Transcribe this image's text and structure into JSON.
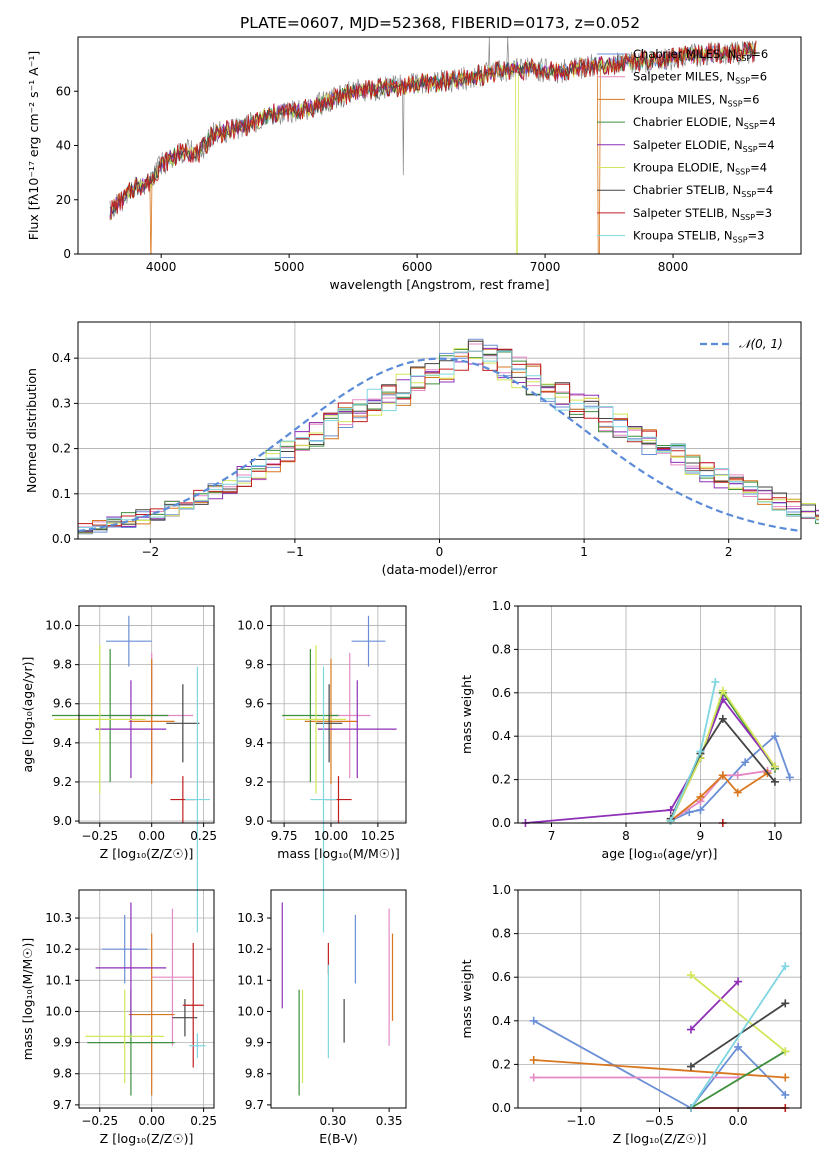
{
  "figure_title": "PLATE=0607, MJD=52368, FIBERID=0173, z=0.052",
  "colors": {
    "Chabrier MILES": "#6b8fd6",
    "Salpeter MILES": "#e589c4",
    "Kroupa MILES": "#d9771f",
    "Chabrier ELODIE": "#3e8f3e",
    "Salpeter ELODIE": "#8e2fb8",
    "Kroupa ELODIE": "#d4e65a",
    "Chabrier STELIB": "#444444",
    "Salpeter STELIB": "#c21f1f",
    "Kroupa STELIB": "#7fd6e0",
    "grid": "#b0b0b0",
    "normal_curve": "#5b8bd9"
  },
  "chart_data": [
    {
      "id": "spectrum",
      "type": "line",
      "xlabel": "wavelength [Angstrom, rest frame]",
      "ylabel": "Flux [fλ10⁻¹⁷ erg cm⁻² s⁻¹ A⁻¹]",
      "xlim": [
        3350,
        9000
      ],
      "ylim": [
        0,
        80
      ],
      "xticks": [
        4000,
        5000,
        6000,
        7000,
        8000
      ],
      "yticks": [
        0,
        20,
        40,
        60
      ],
      "grid": false,
      "legend_position": "top-right",
      "legend": [
        {
          "model": "Chabrier MILES",
          "label": "Chabrier MILES, N",
          "sub": "SSP",
          "tail": "=6"
        },
        {
          "model": "Salpeter MILES",
          "label": "Salpeter MILES, N",
          "sub": "SSP",
          "tail": "=6"
        },
        {
          "model": "Kroupa MILES",
          "label": "Kroupa MILES, N",
          "sub": "SSP",
          "tail": "=6"
        },
        {
          "model": "Chabrier ELODIE",
          "label": "Chabrier ELODIE, N",
          "sub": "SSP",
          "tail": "=4"
        },
        {
          "model": "Salpeter ELODIE",
          "label": "Salpeter ELODIE, N",
          "sub": "SSP",
          "tail": "=4"
        },
        {
          "model": "Kroupa ELODIE",
          "label": "Kroupa ELODIE, N",
          "sub": "SSP",
          "tail": "=4"
        },
        {
          "model": "Chabrier STELIB",
          "label": "Chabrier STELIB, N",
          "sub": "SSP",
          "tail": "=4"
        },
        {
          "model": "Salpeter STELIB",
          "label": "Salpeter STELIB, N",
          "sub": "SSP",
          "tail": "=3"
        },
        {
          "model": "Kroupa STELIB",
          "label": "Kroupa STELIB, N",
          "sub": "SSP",
          "tail": "=3"
        }
      ],
      "continuum": {
        "x": [
          3600,
          3700,
          3800,
          3900,
          4000,
          4100,
          4200,
          4300,
          4400,
          4500,
          4700,
          4900,
          5100,
          5300,
          5500,
          5700,
          5900,
          6100,
          6300,
          6500,
          6700,
          6900,
          7100,
          7300,
          7500,
          7700,
          7900,
          8100,
          8300,
          8500,
          8650
        ],
        "y": [
          16,
          20,
          25,
          26,
          33,
          36,
          38,
          37,
          44,
          45,
          48,
          52,
          53,
          56,
          60,
          61,
          62,
          63,
          64,
          66,
          68,
          68,
          67,
          69,
          70,
          71,
          71,
          73,
          74,
          74,
          75
        ]
      },
      "data_spikes": [
        {
          "x": 5890,
          "y": 29
        },
        {
          "x": 6563,
          "y": 80
        },
        {
          "x": 6710,
          "y": 80
        }
      ],
      "model_drops": [
        {
          "x": 3920,
          "model": "Kroupa MILES"
        },
        {
          "x": 6780,
          "model": "Kroupa ELODIE"
        },
        {
          "x": 7420,
          "model": "Kroupa MILES"
        }
      ]
    },
    {
      "id": "residuals",
      "type": "histogram",
      "xlabel": "(data-model)/error",
      "ylabel": "Normed distribution",
      "xlim": [
        -2.5,
        2.5
      ],
      "ylim": [
        0,
        0.48
      ],
      "xticks": [
        -2,
        -1,
        0,
        1,
        2
      ],
      "yticks": [
        0.0,
        0.1,
        0.2,
        0.3,
        0.4
      ],
      "grid": true,
      "legend_position": "top-right",
      "legend": [
        {
          "label": "𝒩(0, 1)",
          "style": "dashed"
        }
      ],
      "bin_width": 0.1,
      "bin_start": -2.5,
      "reference_density": [
        0.02,
        0.028,
        0.034,
        0.042,
        0.05,
        0.058,
        0.068,
        0.08,
        0.093,
        0.106,
        0.122,
        0.138,
        0.152,
        0.172,
        0.196,
        0.216,
        0.232,
        0.25,
        0.272,
        0.29,
        0.3,
        0.318,
        0.33,
        0.345,
        0.36,
        0.38,
        0.4,
        0.412,
        0.402,
        0.384,
        0.372,
        0.352,
        0.338,
        0.318,
        0.3,
        0.286,
        0.268,
        0.248,
        0.23,
        0.214,
        0.198,
        0.184,
        0.166,
        0.15,
        0.136,
        0.124,
        0.11,
        0.097,
        0.084,
        0.07,
        0.061,
        0.052,
        0.046,
        0.04,
        0.034,
        0.03,
        0.026,
        0.024,
        0.022,
        0.02
      ]
    },
    {
      "id": "age-vs-Z",
      "type": "errorbar",
      "xlabel": "Z [log₁₀(Z/Z☉)]",
      "ylabel": "age  [log₁₀(age/yr)]",
      "xlim": [
        -0.35,
        0.3
      ],
      "ylim": [
        8.99,
        10.1
      ],
      "xticks": [
        -0.25,
        0.0,
        0.25
      ],
      "yticks": [
        9.0,
        9.2,
        9.4,
        9.6,
        9.8,
        10.0
      ],
      "grid": true,
      "points": [
        {
          "model": "Chabrier MILES",
          "x": -0.11,
          "y": 9.92,
          "xerr": 0.11,
          "yerr": 0.13
        },
        {
          "model": "Salpeter MILES",
          "x": 0.0,
          "y": 9.54,
          "xerr": 0.2,
          "yerr": 0.32
        },
        {
          "model": "Kroupa MILES",
          "x": 0.0,
          "y": 9.51,
          "xerr": 0.11,
          "yerr": 0.32
        },
        {
          "model": "Chabrier ELODIE",
          "x": -0.2,
          "y": 9.54,
          "xerr": 0.28,
          "yerr": 0.34
        },
        {
          "model": "Salpeter ELODIE",
          "x": -0.1,
          "y": 9.47,
          "xerr": 0.17,
          "yerr": 0.25
        },
        {
          "model": "Kroupa ELODIE",
          "x": -0.25,
          "y": 9.52,
          "xerr": 0.22,
          "yerr": 0.38
        },
        {
          "model": "Chabrier STELIB",
          "x": 0.15,
          "y": 9.5,
          "xerr": 0.08,
          "yerr": 0.2
        },
        {
          "model": "Salpeter STELIB",
          "x": 0.15,
          "y": 9.11,
          "xerr": 0.06,
          "yerr": 0.12
        },
        {
          "model": "Kroupa STELIB",
          "x": 0.22,
          "y": 9.11,
          "xerr": 0.06,
          "yerr": 0.68
        }
      ]
    },
    {
      "id": "age-vs-mass",
      "type": "errorbar",
      "xlabel": "mass [log₁₀(M/M☉)]",
      "ylabel": "",
      "xlim": [
        9.68,
        10.4
      ],
      "ylim": [
        8.99,
        10.1
      ],
      "xticks": [
        9.75,
        10.0,
        10.25
      ],
      "yticks": [
        9.0,
        9.2,
        9.4,
        9.6,
        9.8,
        10.0
      ],
      "grid": true,
      "points": [
        {
          "model": "Chabrier MILES",
          "x": 10.2,
          "y": 9.92,
          "xerr": 0.09,
          "yerr": 0.13
        },
        {
          "model": "Salpeter MILES",
          "x": 10.1,
          "y": 9.54,
          "xerr": 0.11,
          "yerr": 0.32
        },
        {
          "model": "Kroupa MILES",
          "x": 10.0,
          "y": 9.51,
          "xerr": 0.14,
          "yerr": 0.32
        },
        {
          "model": "Chabrier ELODIE",
          "x": 9.89,
          "y": 9.54,
          "xerr": 0.15,
          "yerr": 0.34
        },
        {
          "model": "Salpeter ELODIE",
          "x": 10.14,
          "y": 9.47,
          "xerr": 0.21,
          "yerr": 0.25
        },
        {
          "model": "Kroupa ELODIE",
          "x": 9.92,
          "y": 9.52,
          "xerr": 0.16,
          "yerr": 0.38
        },
        {
          "model": "Chabrier STELIB",
          "x": 9.99,
          "y": 9.5,
          "xerr": 0.07,
          "yerr": 0.2
        },
        {
          "model": "Salpeter STELIB",
          "x": 10.04,
          "y": 9.11,
          "xerr": 0.07,
          "yerr": 0.12
        },
        {
          "model": "Kroupa STELIB",
          "x": 9.96,
          "y": 9.11,
          "xerr": 0.07,
          "yerr": 0.68
        }
      ]
    },
    {
      "id": "weight-vs-age",
      "type": "line",
      "xlabel": "age  [log₁₀(age/yr)]",
      "ylabel": "mass weight",
      "xlim": [
        6.55,
        10.35
      ],
      "ylim": [
        0,
        1.0
      ],
      "xticks": [
        7,
        8,
        9,
        10
      ],
      "yticks": [
        0.0,
        0.2,
        0.4,
        0.6,
        0.8,
        1.0
      ],
      "grid": true,
      "series": [
        {
          "model": "Chabrier MILES",
          "x": [
            8.6,
            8.85,
            9.0,
            9.6,
            10.0,
            10.2
          ],
          "y": [
            0.01,
            0.05,
            0.06,
            0.28,
            0.4,
            0.21
          ]
        },
        {
          "model": "Salpeter MILES",
          "x": [
            8.6,
            9.0,
            9.3,
            9.5,
            9.9
          ],
          "y": [
            0.01,
            0.1,
            0.22,
            0.22,
            0.24
          ]
        },
        {
          "model": "Kroupa MILES",
          "x": [
            8.6,
            9.0,
            9.3,
            9.5,
            9.9
          ],
          "y": [
            0.01,
            0.12,
            0.22,
            0.14,
            0.23
          ]
        },
        {
          "model": "Chabrier ELODIE",
          "x": [
            8.6,
            9.0,
            9.3,
            10.0
          ],
          "y": [
            0.01,
            0.3,
            0.6,
            0.25
          ]
        },
        {
          "model": "Salpeter ELODIE",
          "x": [
            6.65,
            8.6,
            9.0,
            9.3,
            10.0
          ],
          "y": [
            0.0,
            0.06,
            0.3,
            0.57,
            0.26
          ]
        },
        {
          "model": "Kroupa ELODIE",
          "x": [
            8.6,
            9.0,
            9.3,
            10.0
          ],
          "y": [
            0.01,
            0.3,
            0.61,
            0.26
          ]
        },
        {
          "model": "Chabrier STELIB",
          "x": [
            8.6,
            9.0,
            9.3,
            10.0
          ],
          "y": [
            0.02,
            0.32,
            0.48,
            0.19
          ]
        },
        {
          "model": "Salpeter STELIB",
          "x": [
            9.3
          ],
          "y": [
            0.0
          ]
        },
        {
          "model": "Kroupa STELIB",
          "x": [
            8.6,
            9.0,
            9.2
          ],
          "y": [
            0.01,
            0.33,
            0.65
          ]
        }
      ]
    },
    {
      "id": "mass-vs-Z",
      "type": "errorbar",
      "xlabel": "Z [log₁₀(Z/Z☉)]",
      "ylabel": "mass [log₁₀(M/M☉)]",
      "xlim": [
        -0.35,
        0.3
      ],
      "ylim": [
        9.69,
        10.39
      ],
      "xticks": [
        -0.25,
        0.0,
        0.25
      ],
      "yticks": [
        9.7,
        9.8,
        9.9,
        10.0,
        10.1,
        10.2,
        10.3
      ],
      "grid": true,
      "points": [
        {
          "model": "Chabrier MILES",
          "x": -0.13,
          "y": 10.2,
          "xerr": 0.11,
          "yerr": 0.11
        },
        {
          "model": "Salpeter MILES",
          "x": 0.1,
          "y": 10.11,
          "xerr": 0.1,
          "yerr": 0.22
        },
        {
          "model": "Kroupa MILES",
          "x": 0.0,
          "y": 9.99,
          "xerr": 0.11,
          "yerr": 0.26
        },
        {
          "model": "Chabrier ELODIE",
          "x": -0.1,
          "y": 9.9,
          "xerr": 0.21,
          "yerr": 0.17
        },
        {
          "model": "Salpeter ELODIE",
          "x": -0.1,
          "y": 10.14,
          "xerr": 0.17,
          "yerr": 0.21
        },
        {
          "model": "Kroupa ELODIE",
          "x": -0.13,
          "y": 9.92,
          "xerr": 0.19,
          "yerr": 0.15
        },
        {
          "model": "Chabrier STELIB",
          "x": 0.16,
          "y": 9.98,
          "xerr": 0.06,
          "yerr": 0.06
        },
        {
          "model": "Salpeter STELIB",
          "x": 0.2,
          "y": 10.02,
          "xerr": 0.05,
          "yerr": 0.2
        },
        {
          "model": "Kroupa STELIB",
          "x": 0.22,
          "y": 9.89,
          "xerr": 0.04,
          "yerr": 0.04
        }
      ]
    },
    {
      "id": "mass-vs-EBV",
      "type": "errorbar",
      "xlabel": "E(B-V)",
      "ylabel": "",
      "xlim": [
        0.245,
        0.365
      ],
      "ylim": [
        9.69,
        10.39
      ],
      "xticks": [
        0.3,
        0.35
      ],
      "yticks": [
        9.7,
        9.8,
        9.9,
        10.0,
        10.1,
        10.2,
        10.3
      ],
      "grid": false,
      "points": [
        {
          "model": "Chabrier MILES",
          "x": 0.32,
          "y": 10.2,
          "xerr": 0.0,
          "yerr": 0.11
        },
        {
          "model": "Salpeter MILES",
          "x": 0.35,
          "y": 10.11,
          "xerr": 0.0,
          "yerr": 0.22
        },
        {
          "model": "Kroupa MILES",
          "x": 0.353,
          "y": 10.11,
          "xerr": 0.0,
          "yerr": 0.14
        },
        {
          "model": "Chabrier ELODIE",
          "x": 0.27,
          "y": 9.9,
          "xerr": 0.0,
          "yerr": 0.17
        },
        {
          "model": "Salpeter ELODIE",
          "x": 0.255,
          "y": 10.18,
          "xerr": 0.0,
          "yerr": 0.17
        },
        {
          "model": "Kroupa ELODIE",
          "x": 0.273,
          "y": 9.92,
          "xerr": 0.0,
          "yerr": 0.15
        },
        {
          "model": "Chabrier STELIB",
          "x": 0.31,
          "y": 9.97,
          "xerr": 0.0,
          "yerr": 0.07
        },
        {
          "model": "Salpeter STELIB",
          "x": 0.296,
          "y": 10.17,
          "xerr": 0.0,
          "yerr": 0.05
        },
        {
          "model": "Kroupa STELIB",
          "x": 0.296,
          "y": 10.0,
          "xerr": 0.0,
          "yerr": 0.15
        }
      ]
    },
    {
      "id": "weight-vs-Z",
      "type": "line",
      "xlabel": "Z [log₁₀(Z/Z☉)]",
      "ylabel": "mass weight",
      "xlim": [
        -1.4,
        0.4
      ],
      "ylim": [
        0,
        1.0
      ],
      "xticks": [
        -1.0,
        -0.5,
        0.0
      ],
      "yticks": [
        0.0,
        0.2,
        0.4,
        0.6,
        0.8,
        1.0
      ],
      "grid": true,
      "series": [
        {
          "model": "Chabrier MILES",
          "x": [
            -1.3,
            -0.3,
            0.0,
            0.3
          ],
          "y": [
            0.4,
            0.0,
            0.28,
            0.06
          ]
        },
        {
          "model": "Salpeter MILES",
          "x": [
            -1.3,
            0.0
          ],
          "y": [
            0.14,
            0.14
          ]
        },
        {
          "model": "Kroupa MILES",
          "x": [
            -1.3,
            0.3
          ],
          "y": [
            0.22,
            0.14
          ]
        },
        {
          "model": "Chabrier ELODIE",
          "x": [
            -0.3,
            0.3
          ],
          "y": [
            0.0,
            0.26
          ]
        },
        {
          "model": "Salpeter ELODIE",
          "x": [
            -0.3,
            0.0
          ],
          "y": [
            0.36,
            0.58
          ]
        },
        {
          "model": "Kroupa ELODIE",
          "x": [
            -0.3,
            0.3
          ],
          "y": [
            0.61,
            0.26
          ]
        },
        {
          "model": "Chabrier STELIB",
          "x": [
            -0.3,
            0.3
          ],
          "y": [
            0.19,
            0.48
          ]
        },
        {
          "model": "Salpeter STELIB",
          "x": [
            -0.3,
            0.3
          ],
          "y": [
            0.0,
            0.0
          ]
        },
        {
          "model": "Kroupa STELIB",
          "x": [
            -0.3,
            0.3
          ],
          "y": [
            0.0,
            0.65
          ]
        }
      ]
    }
  ]
}
